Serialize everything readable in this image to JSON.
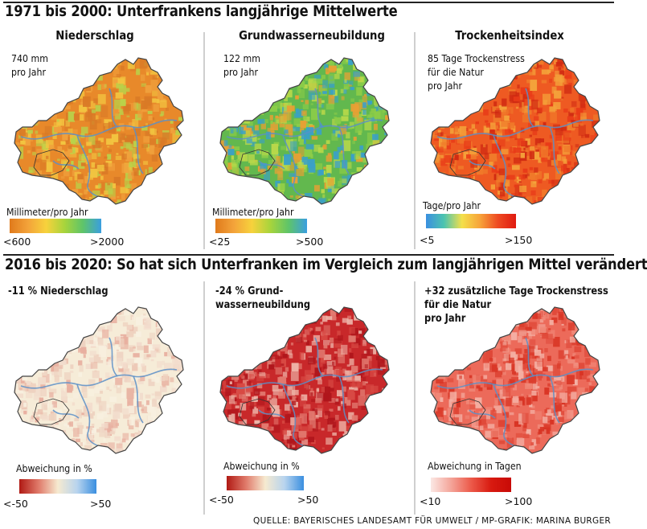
{
  "sections": [
    {
      "title": "1971 bis 2000: Unterfrankens langjährige Mittelwerte",
      "panels": [
        {
          "title": "Niederschlag",
          "value_lines": [
            "740 mm",
            "pro Jahr"
          ],
          "legend": {
            "title": "Millimeter/pro Jahr",
            "min": "<600",
            "max": ">2000",
            "colors": [
              "#e07a1c",
              "#f3a33a",
              "#f7d23c",
              "#a7d43c",
              "#5ec46a",
              "#3a9ee0"
            ]
          },
          "map_palette": [
            "#e8892a",
            "#f0a03c",
            "#d97a26",
            "#b9d24a",
            "#f2c440"
          ]
        },
        {
          "title": "Grundwasserneubildung",
          "value_lines": [
            "122 mm",
            "pro Jahr"
          ],
          "legend": {
            "title": "Millimeter/pro Jahr",
            "min": "<25",
            "max": ">500",
            "colors": [
              "#e07a1c",
              "#f3a33a",
              "#f7d23c",
              "#a7d43c",
              "#5ec46a",
              "#3a9ee0"
            ]
          },
          "map_palette": [
            "#62b84e",
            "#8ccc48",
            "#3aa0c8",
            "#b8d84a",
            "#e8a034"
          ]
        },
        {
          "title": "Trockenheitsindex",
          "value_lines": [
            "85 Tage Trockenstress",
            "für die Natur",
            "pro Jahr"
          ],
          "legend": {
            "title": "Tage/pro Jahr",
            "min": "<5",
            "max": ">150",
            "colors": [
              "#3a8fe0",
              "#4cc4b0",
              "#f4e04a",
              "#f7a33a",
              "#ee4a22",
              "#e01a10"
            ]
          },
          "map_palette": [
            "#ee5a22",
            "#f07a2a",
            "#e83a18",
            "#f4a23a",
            "#d02a12"
          ]
        }
      ]
    },
    {
      "title": "2016 bis 2020: So hat sich Unterfranken im Vergleich zum langjährigen Mittel verändert",
      "panels": [
        {
          "title": "",
          "value_lines": [
            "-11 % Niederschlag"
          ],
          "legend": {
            "title": "Abweichung in %",
            "min": "<-50",
            "max": ">50",
            "colors": [
              "#b01a14",
              "#e07a6a",
              "#f6ead0",
              "#b8d4ee",
              "#3a8fe0"
            ]
          },
          "map_palette": [
            "#f6ecd8",
            "#f2dccc",
            "#eed2c0",
            "#f8f0e0",
            "#e8b0a0"
          ]
        },
        {
          "title": "",
          "value_lines": [
            "-24 % Grund-",
            "wasserneubildung"
          ],
          "legend": {
            "title": "Abweichung in %",
            "min": "<-50",
            "max": ">50",
            "colors": [
              "#b01a14",
              "#e07a6a",
              "#f6ead0",
              "#b8d4ee",
              "#3a8fe0"
            ]
          },
          "map_palette": [
            "#c8282a",
            "#d84a44",
            "#e27a70",
            "#b0161c",
            "#eeb4a8"
          ]
        },
        {
          "title": "",
          "value_lines": [
            "+32 zusätzliche Tage Trockenstress",
            "für die Natur",
            "pro Jahr"
          ],
          "legend": {
            "title": "Abweichung in Tagen",
            "min": "<10",
            "max": ">100",
            "colors": [
              "#fbe8e4",
              "#f4a59a",
              "#ec5a4a",
              "#d81a10",
              "#c80a06"
            ]
          },
          "map_palette": [
            "#ec6a5a",
            "#f08878",
            "#e04a3a",
            "#f4b0a4",
            "#d83424"
          ]
        }
      ]
    }
  ],
  "source": "QUELLE: BAYERISCHES LANDESAMT FÜR UMWELT / MP-GRAFIK: MARINA BURGER"
}
